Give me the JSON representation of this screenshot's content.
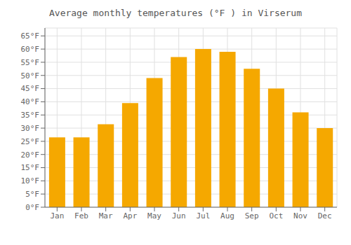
{
  "chart_data": {
    "type": "bar",
    "title": "Average monthly temperatures (°F ) in Virserum",
    "categories": [
      "Jan",
      "Feb",
      "Mar",
      "Apr",
      "May",
      "Jun",
      "Jul",
      "Aug",
      "Sep",
      "Oct",
      "Nov",
      "Dec"
    ],
    "values": [
      26.5,
      26.5,
      31.5,
      39.5,
      49.0,
      57.0,
      60.0,
      59.0,
      52.5,
      45.0,
      36.0,
      30.0
    ],
    "color": "#F5A800",
    "ylim": [
      0,
      68
    ],
    "yticks": [
      {
        "value": 0,
        "label": "0°F"
      },
      {
        "value": 5,
        "label": "5°F"
      },
      {
        "value": 10,
        "label": "10°F"
      },
      {
        "value": 15,
        "label": "15°F"
      },
      {
        "value": 20,
        "label": "20°F"
      },
      {
        "value": 25,
        "label": "25°F"
      },
      {
        "value": 30,
        "label": "30°F"
      },
      {
        "value": 35,
        "label": "35°F"
      },
      {
        "value": 40,
        "label": "40°F"
      },
      {
        "value": 45,
        "label": "45°F"
      },
      {
        "value": 50,
        "label": "50°F"
      },
      {
        "value": 55,
        "label": "55°F"
      },
      {
        "value": 60,
        "label": "60°F"
      },
      {
        "value": 65,
        "label": "65°F"
      }
    ],
    "grid": true
  }
}
